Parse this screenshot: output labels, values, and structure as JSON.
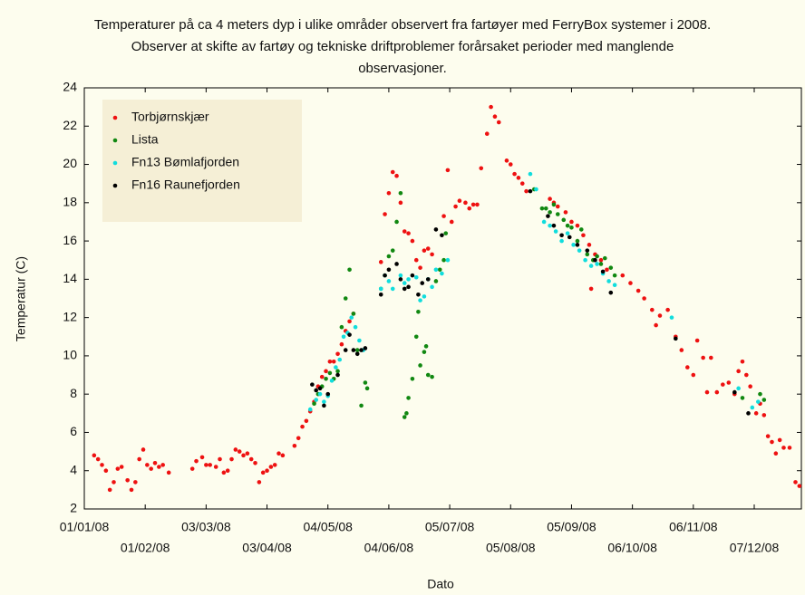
{
  "chart_data": {
    "type": "scatter",
    "title": [
      "Temperaturer på ca 4 meters dyp i ulike områder observert fra fartøyer med FerryBox systemer i 2008.",
      "Observer at skifte av fartøy og tekniske driftproblemer forårsaket perioder med manglende",
      "observasjoner."
    ],
    "x_label": "Dato",
    "y_label": "Temperatur (C)",
    "xlim": [
      "2008-01-01",
      "2008-12-31"
    ],
    "xticks": [
      {
        "value": "2008-01-01",
        "label": "01/01/08"
      },
      {
        "value": "2008-02-01",
        "label": "01/02/08"
      },
      {
        "value": "2008-03-03",
        "label": "03/03/08"
      },
      {
        "value": "2008-04-03",
        "label": "03/04/08"
      },
      {
        "value": "2008-05-04",
        "label": "04/05/08"
      },
      {
        "value": "2008-06-04",
        "label": "04/06/08"
      },
      {
        "value": "2008-07-05",
        "label": "05/07/08"
      },
      {
        "value": "2008-08-05",
        "label": "05/08/08"
      },
      {
        "value": "2008-09-05",
        "label": "05/09/08"
      },
      {
        "value": "2008-10-06",
        "label": "06/10/08"
      },
      {
        "value": "2008-11-06",
        "label": "06/11/08"
      },
      {
        "value": "2008-12-07",
        "label": "07/12/08"
      }
    ],
    "ylim": [
      2,
      24
    ],
    "yticks": [
      2,
      4,
      6,
      8,
      10,
      12,
      14,
      16,
      18,
      20,
      22,
      24
    ],
    "legend": "upper left",
    "series": [
      {
        "name": "Torbjørnskjær",
        "color": "#ee1111",
        "x": [
          "2008-01-06",
          "2008-01-08",
          "2008-01-10",
          "2008-01-12",
          "2008-01-14",
          "2008-01-16",
          "2008-01-18",
          "2008-01-20",
          "2008-01-23",
          "2008-01-25",
          "2008-01-27",
          "2008-01-29",
          "2008-01-31",
          "2008-02-02",
          "2008-02-04",
          "2008-02-06",
          "2008-02-08",
          "2008-02-10",
          "2008-02-13",
          "2008-02-25",
          "2008-02-27",
          "2008-03-01",
          "2008-03-03",
          "2008-03-05",
          "2008-03-08",
          "2008-03-10",
          "2008-03-12",
          "2008-03-14",
          "2008-03-16",
          "2008-03-18",
          "2008-03-20",
          "2008-03-22",
          "2008-03-24",
          "2008-03-26",
          "2008-03-28",
          "2008-03-30",
          "2008-04-01",
          "2008-04-03",
          "2008-04-05",
          "2008-04-07",
          "2008-04-09",
          "2008-04-11",
          "2008-04-17",
          "2008-04-19",
          "2008-04-21",
          "2008-04-23",
          "2008-04-25",
          "2008-04-27",
          "2008-04-29",
          "2008-05-01",
          "2008-05-03",
          "2008-05-05",
          "2008-05-07",
          "2008-05-09",
          "2008-05-11",
          "2008-05-13",
          "2008-05-15",
          "2008-05-17",
          "2008-05-31",
          "2008-06-02",
          "2008-06-04",
          "2008-06-06",
          "2008-06-08",
          "2008-06-10",
          "2008-06-12",
          "2008-06-14",
          "2008-06-16",
          "2008-06-18",
          "2008-06-20",
          "2008-06-22",
          "2008-06-24",
          "2008-06-26",
          "2008-07-02",
          "2008-07-04",
          "2008-07-06",
          "2008-07-08",
          "2008-07-10",
          "2008-07-13",
          "2008-07-15",
          "2008-07-17",
          "2008-07-19",
          "2008-07-21",
          "2008-07-24",
          "2008-07-26",
          "2008-07-28",
          "2008-07-30",
          "2008-08-03",
          "2008-08-05",
          "2008-08-07",
          "2008-08-09",
          "2008-08-11",
          "2008-08-13",
          "2008-08-25",
          "2008-08-27",
          "2008-08-29",
          "2008-09-02",
          "2008-09-05",
          "2008-09-08",
          "2008-09-11",
          "2008-09-14",
          "2008-09-15",
          "2008-09-17",
          "2008-09-20",
          "2008-09-23",
          "2008-10-01",
          "2008-10-05",
          "2008-10-09",
          "2008-10-12",
          "2008-10-16",
          "2008-10-18",
          "2008-10-20",
          "2008-10-24",
          "2008-10-28",
          "2008-10-31",
          "2008-11-03",
          "2008-11-06",
          "2008-11-08",
          "2008-11-11",
          "2008-11-13",
          "2008-11-15",
          "2008-11-18",
          "2008-11-21",
          "2008-11-24",
          "2008-11-27",
          "2008-11-29",
          "2008-12-01",
          "2008-12-03",
          "2008-12-05",
          "2008-12-08",
          "2008-12-10",
          "2008-12-12",
          "2008-12-14",
          "2008-12-16",
          "2008-12-18",
          "2008-12-20",
          "2008-12-22",
          "2008-12-25",
          "2008-12-28",
          "2008-12-30"
        ],
        "values": [
          4.8,
          4.6,
          4.3,
          4.0,
          3.0,
          3.4,
          4.1,
          4.2,
          3.5,
          3.0,
          3.4,
          4.6,
          5.1,
          4.3,
          4.1,
          4.4,
          4.2,
          4.3,
          3.9,
          4.1,
          4.5,
          4.7,
          4.3,
          4.3,
          4.2,
          4.6,
          3.9,
          4.0,
          4.6,
          5.1,
          5.0,
          4.8,
          4.9,
          4.6,
          4.4,
          3.4,
          3.9,
          4.0,
          4.2,
          4.3,
          4.9,
          4.8,
          5.3,
          5.7,
          6.3,
          6.6,
          7.1,
          7.6,
          8.4,
          8.9,
          9.2,
          9.7,
          9.7,
          10.1,
          10.6,
          11.3,
          11.8,
          12.2,
          14.9,
          17.4,
          18.5,
          19.6,
          19.4,
          18.0,
          16.5,
          16.4,
          16.0,
          15.0,
          14.6,
          15.5,
          15.6,
          15.3,
          17.3,
          19.7,
          17.0,
          17.8,
          18.1,
          18.0,
          17.7,
          17.9,
          17.9,
          19.8,
          21.6,
          23.0,
          22.5,
          22.2,
          20.2,
          20.0,
          19.5,
          19.3,
          19.0,
          18.6,
          18.2,
          18.0,
          17.8,
          17.5,
          17.0,
          16.8,
          16.3,
          15.8,
          13.5,
          15.3,
          15.0,
          14.5,
          14.2,
          13.8,
          13.4,
          13.0,
          12.4,
          11.6,
          12.1,
          12.4,
          11.0,
          10.3,
          9.4,
          9.0,
          10.8,
          9.9,
          8.1,
          9.9,
          8.1,
          8.5,
          8.6,
          8.0,
          9.2,
          9.7,
          9.0,
          8.4,
          7.0,
          7.5,
          6.9,
          5.8,
          5.5,
          4.9,
          5.6,
          5.2,
          5.2,
          3.4,
          3.2
        ]
      },
      {
        "name": "Lista",
        "color": "#118811",
        "x": [
          "2008-04-27",
          "2008-04-29",
          "2008-05-01",
          "2008-05-03",
          "2008-05-05",
          "2008-05-07",
          "2008-05-09",
          "2008-05-11",
          "2008-05-13",
          "2008-05-15",
          "2008-05-17",
          "2008-05-19",
          "2008-05-21",
          "2008-05-23",
          "2008-05-24",
          "2008-05-31",
          "2008-06-02",
          "2008-06-04",
          "2008-06-06",
          "2008-06-08",
          "2008-06-10",
          "2008-06-12",
          "2008-06-13",
          "2008-06-14",
          "2008-06-16",
          "2008-06-18",
          "2008-06-19",
          "2008-06-20",
          "2008-06-22",
          "2008-06-23",
          "2008-06-24",
          "2008-06-26",
          "2008-06-28",
          "2008-06-30",
          "2008-07-02",
          "2008-07-03",
          "2008-08-17",
          "2008-08-21",
          "2008-08-23",
          "2008-08-25",
          "2008-08-27",
          "2008-08-29",
          "2008-09-01",
          "2008-09-03",
          "2008-09-05",
          "2008-09-08",
          "2008-09-10",
          "2008-09-13",
          "2008-09-16",
          "2008-09-18",
          "2008-09-20",
          "2008-09-22",
          "2008-09-25",
          "2008-09-27",
          "2008-12-01",
          "2008-12-10",
          "2008-12-12"
        ],
        "values": [
          7.5,
          8.0,
          8.4,
          8.8,
          9.1,
          8.8,
          9.2,
          11.5,
          13.0,
          14.5,
          12.2,
          10.3,
          7.4,
          8.6,
          8.3,
          13.5,
          14.2,
          15.2,
          15.5,
          17.0,
          18.5,
          6.8,
          7.0,
          7.8,
          8.8,
          11.0,
          12.3,
          9.5,
          10.2,
          10.5,
          9.0,
          8.9,
          13.9,
          14.5,
          15.0,
          16.4,
          18.7,
          17.7,
          17.7,
          17.5,
          17.9,
          17.4,
          17.1,
          16.8,
          16.7,
          16.0,
          16.6,
          15.3,
          15.0,
          15.2,
          14.8,
          15.1,
          14.6,
          14.2,
          7.8,
          8.0,
          7.7
        ]
      },
      {
        "name": "Fn13 Bømlafjorden",
        "color": "#11dddd",
        "x": [
          "2008-04-25",
          "2008-04-28",
          "2008-04-30",
          "2008-05-02",
          "2008-05-04",
          "2008-05-06",
          "2008-05-08",
          "2008-05-10",
          "2008-05-12",
          "2008-05-14",
          "2008-05-16",
          "2008-05-18",
          "2008-05-20",
          "2008-05-22",
          "2008-05-31",
          "2008-06-02",
          "2008-06-04",
          "2008-06-06",
          "2008-06-10",
          "2008-06-12",
          "2008-06-14",
          "2008-06-18",
          "2008-06-20",
          "2008-06-22",
          "2008-06-24",
          "2008-06-26",
          "2008-06-28",
          "2008-07-01",
          "2008-07-04",
          "2008-08-15",
          "2008-08-18",
          "2008-08-22",
          "2008-08-25",
          "2008-08-28",
          "2008-08-31",
          "2008-09-03",
          "2008-09-06",
          "2008-09-09",
          "2008-09-12",
          "2008-09-15",
          "2008-09-18",
          "2008-09-21",
          "2008-09-24",
          "2008-09-27",
          "2008-10-26",
          "2008-11-29",
          "2008-12-06",
          "2008-12-09"
        ],
        "values": [
          7.2,
          7.7,
          8.0,
          7.6,
          7.9,
          8.7,
          9.4,
          9.8,
          11.0,
          11.2,
          12.0,
          11.5,
          10.8,
          10.3,
          13.5,
          14.2,
          13.9,
          13.5,
          14.2,
          13.8,
          14.0,
          14.1,
          12.9,
          13.1,
          14.0,
          13.6,
          14.5,
          14.3,
          15.0,
          19.5,
          18.7,
          17.0,
          16.8,
          16.5,
          16.0,
          16.4,
          15.8,
          15.5,
          15.0,
          14.7,
          14.8,
          14.3,
          13.9,
          13.7,
          12.0,
          8.3,
          7.3,
          7.6
        ]
      },
      {
        "name": "Fn16 Raunefjorden",
        "color": "#000000",
        "x": [
          "2008-04-26",
          "2008-04-28",
          "2008-04-30",
          "2008-05-02",
          "2008-05-04",
          "2008-05-09",
          "2008-05-13",
          "2008-05-15",
          "2008-05-17",
          "2008-05-19",
          "2008-05-21",
          "2008-05-23",
          "2008-05-31",
          "2008-06-02",
          "2008-06-04",
          "2008-06-08",
          "2008-06-10",
          "2008-06-12",
          "2008-06-14",
          "2008-06-16",
          "2008-06-19",
          "2008-06-21",
          "2008-06-24",
          "2008-06-28",
          "2008-07-01",
          "2008-08-15",
          "2008-08-24",
          "2008-08-27",
          "2008-08-31",
          "2008-09-04",
          "2008-09-08",
          "2008-09-13",
          "2008-09-17",
          "2008-09-21",
          "2008-09-25",
          "2008-10-28",
          "2008-11-27",
          "2008-12-04"
        ],
        "values": [
          8.5,
          8.2,
          8.3,
          7.4,
          8.0,
          9.0,
          10.3,
          11.1,
          10.3,
          10.1,
          10.3,
          10.4,
          13.2,
          14.2,
          14.5,
          14.8,
          14.0,
          13.5,
          13.6,
          14.2,
          13.2,
          13.8,
          14.0,
          16.6,
          16.3,
          18.6,
          17.3,
          16.8,
          16.3,
          16.2,
          15.8,
          15.5,
          15.0,
          14.4,
          13.3,
          10.9,
          8.1,
          7.0
        ]
      }
    ]
  }
}
